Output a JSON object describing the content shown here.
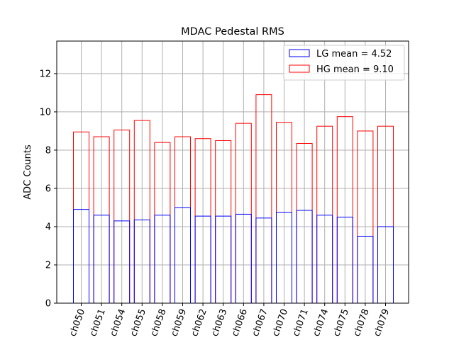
{
  "chart_data": {
    "type": "bar",
    "title": "MDAC Pedestal RMS",
    "xlabel": "",
    "ylabel": "ADC Counts",
    "categories": [
      "ch050",
      "ch051",
      "ch054",
      "ch055",
      "ch058",
      "ch059",
      "ch062",
      "ch063",
      "ch066",
      "ch067",
      "ch070",
      "ch071",
      "ch074",
      "ch075",
      "ch078",
      "ch079"
    ],
    "series": [
      {
        "name": "LG mean = 4.52",
        "color": "#0000ff",
        "values": [
          4.9,
          4.6,
          4.3,
          4.35,
          4.6,
          5.0,
          4.55,
          4.55,
          4.65,
          4.45,
          4.75,
          4.85,
          4.6,
          4.5,
          3.5,
          4.0
        ]
      },
      {
        "name": "HG mean = 9.10",
        "color": "#ff0000",
        "values": [
          8.95,
          8.7,
          9.05,
          9.55,
          8.4,
          8.7,
          8.6,
          8.5,
          9.4,
          10.9,
          9.45,
          8.35,
          9.25,
          9.75,
          9.0,
          9.25
        ]
      }
    ],
    "ylim": [
      0,
      13.7
    ],
    "yticks": [
      0,
      2,
      4,
      6,
      8,
      10,
      12
    ],
    "grid": true,
    "legend": "upper-right"
  }
}
